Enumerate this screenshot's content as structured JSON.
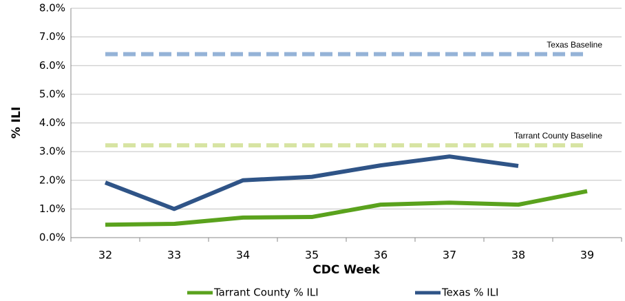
{
  "chart_data": {
    "type": "line",
    "x_label": "CDC Week",
    "y_label": "% ILI",
    "categories": [
      "32",
      "33",
      "34",
      "35",
      "36",
      "37",
      "38",
      "39"
    ],
    "series": [
      {
        "name": "Tarrant County % ILI",
        "color": "#5aa21d",
        "values": [
          0.45,
          0.48,
          0.7,
          0.72,
          1.15,
          1.22,
          1.15,
          1.62
        ]
      },
      {
        "name": "Texas % ILI",
        "color": "#2f5487",
        "values": [
          1.92,
          1.0,
          2.0,
          2.12,
          2.52,
          2.83,
          2.5,
          null
        ]
      }
    ],
    "reference_lines": [
      {
        "label": "Texas Baseline",
        "value": 6.4,
        "color": "#95b3d7"
      },
      {
        "label": "Tarrant County Baseline",
        "value": 3.22,
        "color": "#d7e4a3"
      }
    ],
    "ylim": [
      0,
      8
    ],
    "yticks": [
      {
        "value": 0,
        "label": "0.0%"
      },
      {
        "value": 1,
        "label": "1.0%"
      },
      {
        "value": 2,
        "label": "2.0%"
      },
      {
        "value": 3,
        "label": "3.0%"
      },
      {
        "value": 4,
        "label": "4.0%"
      },
      {
        "value": 5,
        "label": "5.0%"
      },
      {
        "value": 6,
        "label": "6.0%"
      },
      {
        "value": 7,
        "label": "7.0%"
      },
      {
        "value": 8,
        "label": "8.0%"
      }
    ],
    "grid": true
  }
}
